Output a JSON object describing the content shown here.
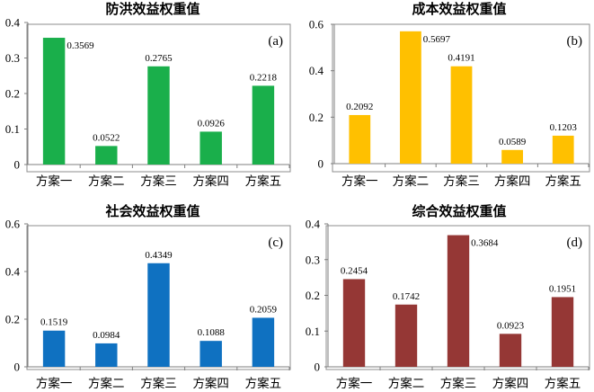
{
  "chart_data": [
    {
      "type": "bar",
      "panel_label": "(a)",
      "title": "防洪效益权重值",
      "categories": [
        "方案一",
        "方案二",
        "方案三",
        "方案四",
        "方案五"
      ],
      "values": [
        0.3569,
        0.0522,
        0.2765,
        0.0926,
        0.2218
      ],
      "value_labels": [
        "0.3569",
        "0.0522",
        "0.2765",
        "0.0926",
        "0.2218"
      ],
      "ylim": [
        0,
        0.4
      ],
      "yticks": [
        0,
        0.1,
        0.2,
        0.3,
        0.4
      ],
      "ytick_labels": [
        "0",
        "0.1",
        "0.2",
        "0.3",
        "0.4"
      ],
      "color": "#1aaf4b"
    },
    {
      "type": "bar",
      "panel_label": "(b)",
      "title": "成本效益权重值",
      "categories": [
        "方案一",
        "方案二",
        "方案三",
        "方案四",
        "方案五"
      ],
      "values": [
        0.2092,
        0.5697,
        0.4191,
        0.0589,
        0.1203
      ],
      "value_labels": [
        "0.2092",
        "0.5697",
        "0.4191",
        "0.0589",
        "0.1203"
      ],
      "ylim": [
        0,
        0.6
      ],
      "yticks": [
        0,
        0.2,
        0.4,
        0.6
      ],
      "ytick_labels": [
        "0",
        "0.2",
        "0.4",
        "0.6"
      ],
      "color": "#ffc000"
    },
    {
      "type": "bar",
      "panel_label": "(c)",
      "title": "社会效益权重值",
      "categories": [
        "方案一",
        "方案二",
        "方案三",
        "方案四",
        "方案五"
      ],
      "values": [
        0.1519,
        0.0984,
        0.4349,
        0.1088,
        0.2059
      ],
      "value_labels": [
        "0.1519",
        "0.0984",
        "0.4349",
        "0.1088",
        "0.2059"
      ],
      "ylim": [
        0,
        0.6
      ],
      "yticks": [
        0,
        0.2,
        0.4,
        0.6
      ],
      "ytick_labels": [
        "0",
        "0.2",
        "0.4",
        "0.6"
      ],
      "color": "#0f71c1"
    },
    {
      "type": "bar",
      "panel_label": "(d)",
      "title": "综合效益权重值",
      "categories": [
        "方案一",
        "方案二",
        "方案三",
        "方案四",
        "方案五"
      ],
      "values": [
        0.2454,
        0.1742,
        0.3684,
        0.0923,
        0.1951
      ],
      "value_labels": [
        "0.2454",
        "0.1742",
        "0.3684",
        "0.0923",
        "0.1951"
      ],
      "ylim": [
        0,
        0.4
      ],
      "yticks": [
        0,
        0.1,
        0.2,
        0.3,
        0.4
      ],
      "ytick_labels": [
        "0",
        "0.1",
        "0.2",
        "0.3",
        "0.4"
      ],
      "color": "#953735"
    }
  ]
}
